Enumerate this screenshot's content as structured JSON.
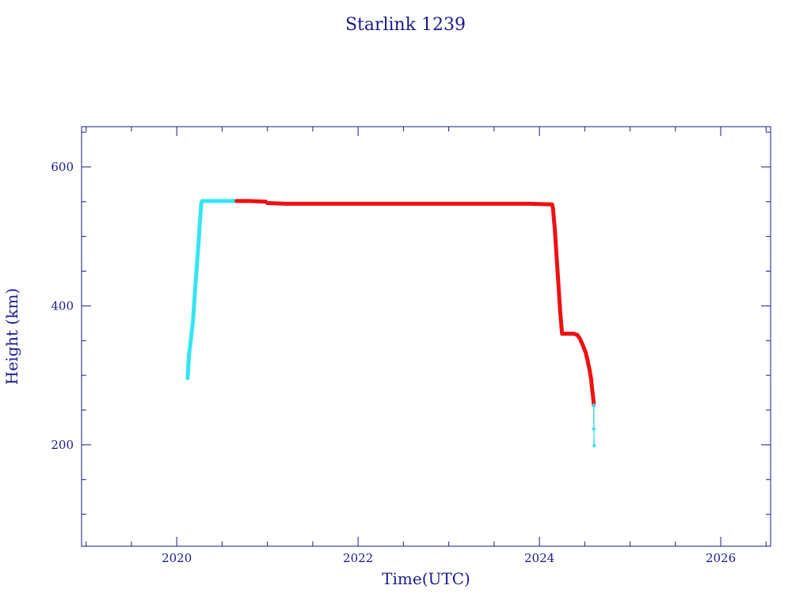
{
  "chart_data": {
    "type": "line",
    "title": "Starlink 1239",
    "xlabel": "Time(UTC)",
    "ylabel": "Height (km)",
    "xlim": [
      2018.95,
      2026.55
    ],
    "ylim": [
      54,
      658
    ],
    "x_major_ticks": [
      2020,
      2022,
      2024,
      2026
    ],
    "x_tick_labels": [
      "2020",
      "2022",
      "2024",
      "2026"
    ],
    "y_major_ticks": [
      200,
      400,
      600
    ],
    "y_tick_labels": [
      "200",
      "400",
      "600"
    ],
    "grid": false,
    "colors": {
      "axis": "#1a1a8c",
      "connector": "#1a1a8c",
      "cyan_segment": "#33e6f2",
      "red_segment": "#ee1111"
    },
    "series": [
      {
        "points": [
          [
            2020.12,
            296
          ],
          [
            2020.135,
            330
          ],
          [
            2020.15,
            345
          ],
          [
            2020.18,
            380
          ],
          [
            2020.2,
            420
          ],
          [
            2020.22,
            455
          ],
          [
            2020.24,
            490
          ],
          [
            2020.26,
            530
          ],
          [
            2020.27,
            548
          ],
          [
            2020.28,
            551
          ],
          [
            2020.4,
            551
          ],
          [
            2020.55,
            551
          ],
          [
            2020.66,
            551
          ]
        ]
      },
      {
        "points": [
          [
            2020.66,
            551
          ],
          [
            2020.8,
            551
          ],
          [
            2020.98,
            550
          ],
          [
            2021.0,
            548
          ],
          [
            2021.2,
            547
          ],
          [
            2021.6,
            547
          ],
          [
            2022.0,
            547
          ],
          [
            2022.5,
            547
          ],
          [
            2023.0,
            547
          ],
          [
            2023.5,
            547
          ],
          [
            2023.9,
            547
          ],
          [
            2024.14,
            546
          ],
          [
            2024.15,
            540
          ],
          [
            2024.17,
            510
          ],
          [
            2024.19,
            470
          ],
          [
            2024.21,
            430
          ],
          [
            2024.23,
            390
          ],
          [
            2024.25,
            360
          ],
          [
            2024.3,
            360
          ],
          [
            2024.38,
            360
          ],
          [
            2024.42,
            358
          ],
          [
            2024.45,
            352
          ],
          [
            2024.48,
            343
          ],
          [
            2024.51,
            333
          ],
          [
            2024.53,
            322
          ],
          [
            2024.55,
            310
          ],
          [
            2024.57,
            295
          ],
          [
            2024.58,
            282
          ],
          [
            2024.595,
            265
          ],
          [
            2024.6,
            257
          ]
        ]
      },
      {
        "points": [
          [
            2024.6,
            257
          ],
          [
            2024.6,
            223
          ],
          [
            2024.605,
            199
          ]
        ]
      }
    ]
  }
}
